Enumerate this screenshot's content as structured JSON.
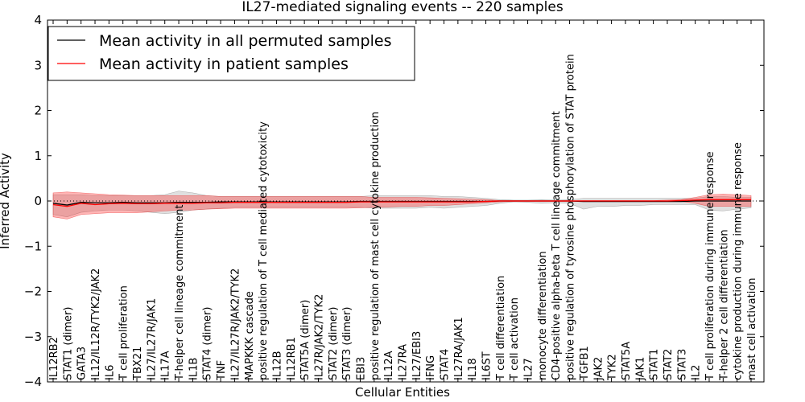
{
  "chart_data": {
    "type": "line",
    "title": "IL27-mediated signaling events -- 220 samples",
    "xlabel": "Cellular Entities",
    "ylabel": "Inferred Activity",
    "ylim": [
      -4,
      4
    ],
    "yticks": [
      -4,
      -3,
      -2,
      -1,
      0,
      1,
      2,
      3,
      4
    ],
    "ytick_labels": [
      "−4",
      "−3",
      "−2",
      "−1",
      "0",
      "1",
      "2",
      "3",
      "4"
    ],
    "legend": {
      "placement": "top-left"
    },
    "categories": [
      "IL12RB2",
      "STAT1 (dimer)",
      "GATA3",
      "IL12/IL12R/TYK2/JAK2",
      "IL6",
      "T cell proliferation",
      "TBX21",
      "IL27/IL27R/JAK1",
      "IL17A",
      "T-helper cell lineage commitment",
      "IL1B",
      "STAT4 (dimer)",
      "TNF",
      "IL27/IL27R/JAK2/TYK2",
      "MAPKKK cascade",
      "positive regulation of T cell mediated cytotoxicity",
      "IL12B",
      "IL12RB1",
      "STAT5A (dimer)",
      "IL27R/JAK2/TYK2",
      "STAT2 (dimer)",
      "STAT3 (dimer)",
      "EBI3",
      "positive regulation of mast cell cytokine production",
      "IL12A",
      "IL27RA",
      "IL27/EBI3",
      "IFNG",
      "STAT4",
      "IL27RA/JAK1",
      "IL18",
      "IL6ST",
      "T cell differentiation",
      "T cell activation",
      "IL27",
      "monocyte differentiation",
      "CD4-positive alpha-beta T cell lineage commitment",
      "positive regulation of tyrosine phosphorylation of STAT protein",
      "TGFB1",
      "JAK2",
      "TYK2",
      "STAT5A",
      "JAK1",
      "STAT1",
      "STAT2",
      "STAT3",
      "IL2",
      "T cell proliferation during immune response",
      "T-helper 2 cell differentiation",
      "cytokine production during immune response",
      "mast cell activation"
    ],
    "series": [
      {
        "name": "Mean activity in all permuted samples",
        "color": "#000000",
        "values": [
          -0.05,
          -0.09,
          -0.03,
          -0.04,
          -0.04,
          -0.03,
          -0.04,
          -0.04,
          -0.04,
          -0.03,
          -0.03,
          -0.03,
          -0.02,
          -0.02,
          -0.02,
          -0.02,
          -0.02,
          -0.02,
          -0.02,
          -0.02,
          -0.02,
          -0.02,
          -0.01,
          -0.01,
          -0.01,
          -0.01,
          -0.01,
          -0.01,
          -0.01,
          -0.01,
          -0.01,
          -0.01,
          0,
          0,
          0,
          0,
          0,
          0,
          -0.01,
          -0.01,
          -0.01,
          -0.01,
          -0.01,
          -0.01,
          -0.01,
          -0.01,
          0,
          0,
          0,
          0,
          0
        ],
        "band_low": [
          -0.3,
          -0.35,
          -0.25,
          -0.22,
          -0.2,
          -0.2,
          -0.22,
          -0.25,
          -0.28,
          -0.25,
          -0.2,
          -0.18,
          -0.16,
          -0.14,
          -0.14,
          -0.14,
          -0.14,
          -0.14,
          -0.14,
          -0.14,
          -0.14,
          -0.14,
          -0.14,
          -0.16,
          -0.16,
          -0.16,
          -0.16,
          -0.14,
          -0.16,
          -0.14,
          -0.12,
          -0.1,
          -0.05,
          -0.02,
          -0.03,
          -0.05,
          -0.04,
          -0.05,
          -0.18,
          -0.12,
          -0.12,
          -0.1,
          -0.1,
          -0.08,
          -0.08,
          -0.08,
          -0.08,
          -0.2,
          -0.22,
          -0.18,
          -0.15
        ],
        "band_high": [
          0.14,
          0.14,
          0.14,
          0.12,
          0.12,
          0.12,
          0.12,
          0.12,
          0.14,
          0.22,
          0.18,
          0.12,
          0.1,
          0.1,
          0.1,
          0.1,
          0.1,
          0.1,
          0.1,
          0.1,
          0.1,
          0.1,
          0.1,
          0.12,
          0.12,
          0.12,
          0.12,
          0.12,
          0.1,
          0.1,
          0.08,
          0.06,
          0.03,
          0.02,
          0.02,
          0.03,
          0.02,
          0.03,
          0.06,
          0.06,
          0.06,
          0.06,
          0.06,
          0.06,
          0.06,
          0.06,
          0.06,
          0.1,
          0.1,
          0.08,
          0.08
        ]
      },
      {
        "name": "Mean activity in patient samples",
        "color": "#ff0000",
        "values": [
          -0.08,
          -0.12,
          -0.05,
          -0.08,
          -0.06,
          -0.05,
          -0.06,
          -0.06,
          -0.05,
          -0.05,
          -0.05,
          -0.04,
          -0.04,
          -0.03,
          -0.03,
          -0.03,
          -0.03,
          -0.03,
          -0.03,
          -0.03,
          -0.03,
          -0.03,
          -0.02,
          -0.02,
          -0.02,
          -0.02,
          -0.02,
          -0.02,
          -0.02,
          -0.02,
          -0.02,
          -0.01,
          0,
          0,
          0,
          0,
          0,
          0,
          0,
          0,
          0,
          0,
          0,
          0,
          0,
          0.01,
          0.02,
          0.03,
          0.03,
          0.03,
          0.03
        ],
        "band_low": [
          -0.35,
          -0.4,
          -0.3,
          -0.28,
          -0.26,
          -0.26,
          -0.26,
          -0.24,
          -0.22,
          -0.2,
          -0.2,
          -0.18,
          -0.17,
          -0.16,
          -0.16,
          -0.16,
          -0.16,
          -0.16,
          -0.16,
          -0.16,
          -0.16,
          -0.16,
          -0.15,
          -0.14,
          -0.13,
          -0.12,
          -0.12,
          -0.1,
          -0.1,
          -0.08,
          -0.06,
          -0.04,
          -0.02,
          -0.01,
          -0.01,
          -0.01,
          -0.01,
          -0.01,
          -0.01,
          -0.01,
          -0.01,
          -0.01,
          -0.01,
          -0.01,
          -0.01,
          -0.01,
          -0.05,
          -0.12,
          -0.12,
          -0.12,
          -0.12
        ],
        "band_high": [
          0.18,
          0.2,
          0.18,
          0.16,
          0.14,
          0.13,
          0.12,
          0.12,
          0.12,
          0.12,
          0.12,
          0.12,
          0.1,
          0.1,
          0.1,
          0.1,
          0.1,
          0.1,
          0.1,
          0.1,
          0.1,
          0.1,
          0.1,
          0.08,
          0.08,
          0.08,
          0.08,
          0.07,
          0.06,
          0.05,
          0.04,
          0.03,
          0.01,
          0.01,
          0.01,
          0.01,
          0.01,
          0.01,
          0.01,
          0.01,
          0.01,
          0.01,
          0.01,
          0.01,
          0.02,
          0.03,
          0.08,
          0.14,
          0.15,
          0.14,
          0.12
        ]
      }
    ]
  }
}
